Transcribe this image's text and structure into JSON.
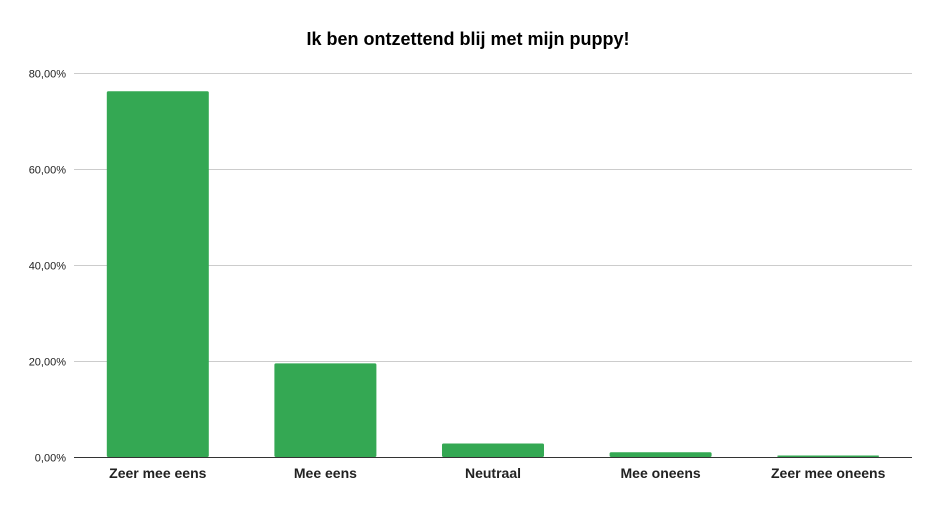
{
  "chart_data": {
    "type": "bar",
    "title": "Ik ben ontzettend blij met mijn puppy!",
    "xlabel": "",
    "ylabel": "",
    "categories": [
      "Zeer mee eens",
      "Mee eens",
      "Neutraal",
      "Mee oneens",
      "Zeer mee oneens"
    ],
    "values": [
      76.2,
      19.5,
      2.8,
      1.0,
      0.3
    ],
    "ylim": [
      0,
      80
    ],
    "yticks": [
      0,
      20,
      40,
      60,
      80
    ],
    "ytick_labels": [
      "0,00%",
      "20,00%",
      "40,00%",
      "60,00%",
      "80,00%"
    ],
    "grid": true,
    "legend": "none",
    "colors": {
      "bar": "#34a853"
    }
  }
}
